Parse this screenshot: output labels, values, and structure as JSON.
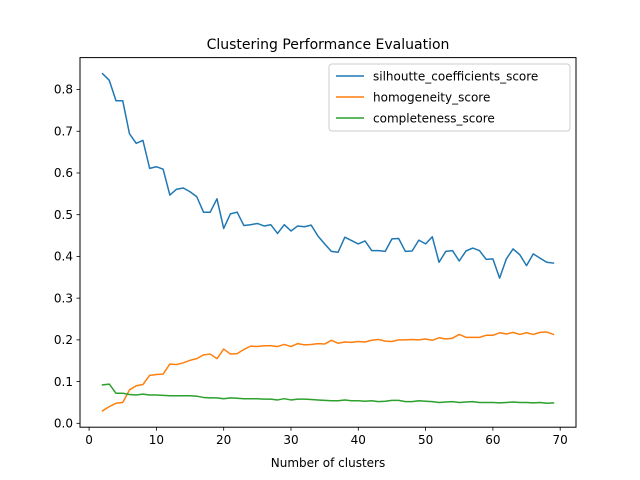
{
  "chart_data": {
    "type": "line",
    "title": "Clustering Performance Evaluation",
    "xlabel": "Number of clusters",
    "ylabel": "",
    "xlim": [
      -1.35,
      72.35
    ],
    "ylim": [
      -0.0093,
      0.8765
    ],
    "xticks": [
      0,
      10,
      20,
      30,
      40,
      50,
      60,
      70
    ],
    "yticks": [
      0.0,
      0.1,
      0.2,
      0.3,
      0.4,
      0.5,
      0.6,
      0.7,
      0.8
    ],
    "ytick_labels": [
      "0.0",
      "0.1",
      "0.2",
      "0.3",
      "0.4",
      "0.5",
      "0.6",
      "0.7",
      "0.8"
    ],
    "grid": false,
    "legend_position": "top-right",
    "x": [
      2,
      3,
      4,
      5,
      6,
      7,
      8,
      9,
      10,
      11,
      12,
      13,
      14,
      15,
      16,
      17,
      18,
      19,
      20,
      21,
      22,
      23,
      24,
      25,
      26,
      27,
      28,
      29,
      30,
      31,
      32,
      33,
      34,
      35,
      36,
      37,
      38,
      39,
      40,
      41,
      42,
      43,
      44,
      45,
      46,
      47,
      48,
      49,
      50,
      51,
      52,
      53,
      54,
      55,
      56,
      57,
      58,
      59,
      60,
      61,
      62,
      63,
      64,
      65,
      66,
      67,
      68,
      69
    ],
    "series": [
      {
        "name": "silhoutte_coefficients_score",
        "color": "#1f77b4",
        "values": [
          0.838,
          0.822,
          0.773,
          0.773,
          0.694,
          0.671,
          0.678,
          0.611,
          0.615,
          0.609,
          0.547,
          0.561,
          0.564,
          0.555,
          0.543,
          0.506,
          0.506,
          0.538,
          0.467,
          0.502,
          0.506,
          0.474,
          0.476,
          0.479,
          0.473,
          0.476,
          0.455,
          0.476,
          0.461,
          0.473,
          0.471,
          0.475,
          0.449,
          0.43,
          0.412,
          0.41,
          0.446,
          0.438,
          0.43,
          0.437,
          0.414,
          0.414,
          0.412,
          0.442,
          0.443,
          0.412,
          0.413,
          0.439,
          0.43,
          0.447,
          0.386,
          0.412,
          0.414,
          0.389,
          0.413,
          0.42,
          0.414,
          0.393,
          0.394,
          0.348,
          0.394,
          0.418,
          0.404,
          0.378,
          0.406,
          0.396,
          0.386,
          0.384
        ]
      },
      {
        "name": "homogeneity_score",
        "color": "#ff7f0e",
        "values": [
          0.03,
          0.04,
          0.048,
          0.05,
          0.08,
          0.09,
          0.093,
          0.115,
          0.117,
          0.118,
          0.142,
          0.141,
          0.145,
          0.151,
          0.155,
          0.164,
          0.166,
          0.155,
          0.178,
          0.166,
          0.167,
          0.177,
          0.185,
          0.184,
          0.186,
          0.186,
          0.184,
          0.189,
          0.184,
          0.191,
          0.188,
          0.189,
          0.191,
          0.19,
          0.199,
          0.192,
          0.195,
          0.194,
          0.196,
          0.195,
          0.199,
          0.201,
          0.197,
          0.196,
          0.2,
          0.2,
          0.201,
          0.2,
          0.202,
          0.199,
          0.205,
          0.202,
          0.204,
          0.213,
          0.206,
          0.206,
          0.206,
          0.211,
          0.211,
          0.217,
          0.214,
          0.218,
          0.213,
          0.217,
          0.213,
          0.218,
          0.219,
          0.213
        ]
      },
      {
        "name": "completeness_score",
        "color": "#2ca02c",
        "values": [
          0.092,
          0.094,
          0.072,
          0.072,
          0.069,
          0.068,
          0.07,
          0.068,
          0.068,
          0.067,
          0.066,
          0.066,
          0.066,
          0.066,
          0.065,
          0.062,
          0.061,
          0.061,
          0.059,
          0.061,
          0.06,
          0.059,
          0.059,
          0.059,
          0.058,
          0.058,
          0.056,
          0.059,
          0.056,
          0.058,
          0.058,
          0.057,
          0.056,
          0.055,
          0.054,
          0.054,
          0.056,
          0.054,
          0.054,
          0.053,
          0.054,
          0.052,
          0.053,
          0.055,
          0.055,
          0.052,
          0.052,
          0.054,
          0.053,
          0.052,
          0.05,
          0.051,
          0.052,
          0.05,
          0.051,
          0.052,
          0.05,
          0.05,
          0.05,
          0.049,
          0.05,
          0.051,
          0.05,
          0.05,
          0.049,
          0.05,
          0.048,
          0.049
        ]
      }
    ]
  }
}
